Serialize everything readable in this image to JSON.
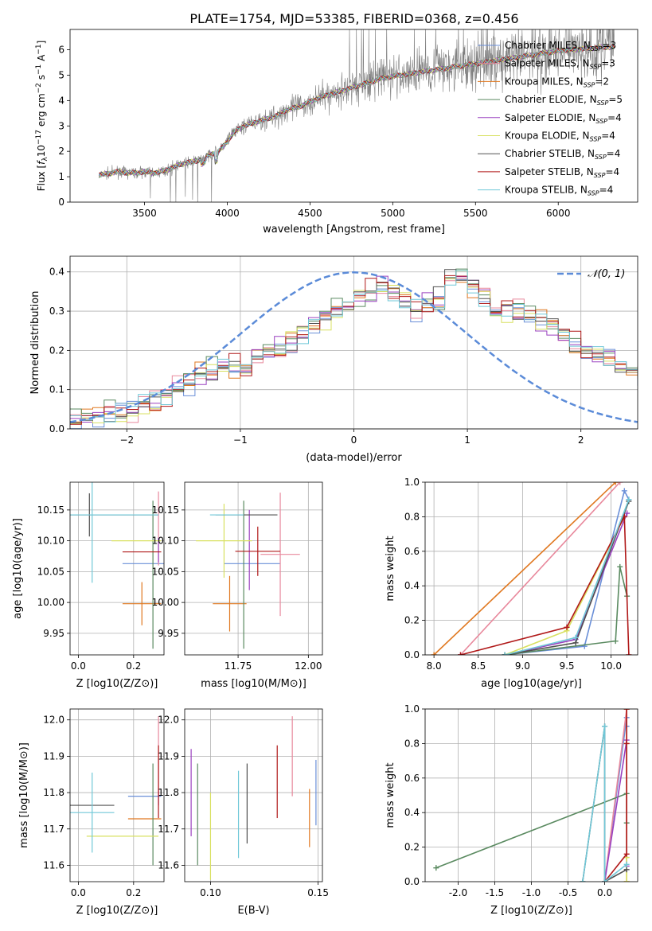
{
  "title": "PLATE=1754, MJD=53385, FIBERID=0368, z=0.456",
  "colors": {
    "Chabrier MILES": "#6a8fd8",
    "Salpeter MILES": "#e8889c",
    "Kroupa MILES": "#e07820",
    "Chabrier ELODIE": "#5a8a60",
    "Salpeter ELODIE": "#9a40c0",
    "Kroupa ELODIE": "#d8e060",
    "Chabrier STELIB": "#505050",
    "Salpeter STELIB": "#b01818",
    "Kroupa STELIB": "#70c8d8",
    "data": "#808080",
    "normal": "#5b8bd8"
  },
  "chart_data": [
    {
      "type": "line",
      "xlabel": "wavelength [Angstrom, rest frame]",
      "ylabel": "Flux [f_λ 10^-17 erg cm^-2 s^-1 A^-1]",
      "xlim": [
        3050,
        6480
      ],
      "ylim": [
        0,
        6.8
      ],
      "xticks": [
        3500,
        4000,
        4500,
        5000,
        5500,
        6000
      ],
      "yticks": [
        0,
        1,
        2,
        3,
        4,
        5,
        6
      ],
      "legend_position": "right",
      "legend": [
        "Chabrier MILES, N_SSP=3",
        "Salpeter MILES, N_SSP=3",
        "Kroupa MILES, N_SSP=2",
        "Chabrier ELODIE, N_SSP=5",
        "Salpeter ELODIE, N_SSP=4",
        "Kroupa ELODIE, N_SSP=4",
        "Chabrier STELIB, N_SSP=4",
        "Salpeter STELIB, N_SSP=4",
        "Kroupa STELIB, N_SSP=4"
      ],
      "model_curve": {
        "x": [
          3220,
          3260,
          3300,
          3350,
          3400,
          3450,
          3500,
          3550,
          3600,
          3650,
          3700,
          3750,
          3800,
          3850,
          3900,
          3950,
          4000,
          4050,
          4100,
          4150,
          4200,
          4250,
          4300,
          4350,
          4400,
          4450,
          4500,
          4550,
          4600,
          4650,
          4700,
          4750,
          4800,
          4850,
          4900,
          4950,
          5000,
          5050,
          5100,
          5150,
          5200,
          5250,
          5300,
          5350,
          5400,
          5450,
          5500,
          5550,
          5600,
          5650,
          5700,
          5750,
          5800,
          5850,
          5900,
          5950,
          6000,
          6050,
          6100,
          6150,
          6200,
          6250,
          6300,
          6340
        ],
        "y": [
          1.05,
          1.1,
          1.15,
          1.2,
          1.15,
          1.15,
          1.2,
          1.15,
          1.2,
          1.3,
          1.45,
          1.55,
          1.6,
          1.7,
          1.9,
          2.0,
          2.4,
          2.8,
          3.0,
          3.1,
          3.2,
          3.3,
          3.4,
          3.6,
          3.7,
          3.8,
          3.95,
          4.1,
          4.2,
          4.3,
          4.4,
          4.5,
          4.6,
          4.7,
          4.8,
          4.9,
          4.95,
          5.0,
          5.05,
          5.1,
          5.15,
          5.2,
          5.25,
          5.3,
          5.35,
          5.4,
          5.45,
          5.5,
          5.55,
          5.6,
          5.65,
          5.7,
          5.75,
          5.8,
          5.85,
          5.9,
          5.95,
          6.0,
          6.0,
          6.05,
          6.05,
          6.1,
          6.1,
          6.1
        ]
      },
      "data_noise": "observed spectrum (grey) scatters around models with noise growing toward red end"
    },
    {
      "type": "bar",
      "xlabel": "(data-model)/error",
      "ylabel": "Normed distribution",
      "xlim": [
        -2.5,
        2.5
      ],
      "ylim": [
        0,
        0.44
      ],
      "xticks": [
        -2,
        -1,
        0,
        1,
        2
      ],
      "yticks": [
        0.0,
        0.1,
        0.2,
        0.3,
        0.4
      ],
      "legend": [
        "𝒩(0, 1)"
      ],
      "legend_position": "top-right",
      "bin_width": 0.1,
      "bins_start": -2.5,
      "base_histogram": [
        0.025,
        0.03,
        0.035,
        0.04,
        0.045,
        0.05,
        0.06,
        0.07,
        0.08,
        0.1,
        0.12,
        0.14,
        0.15,
        0.16,
        0.155,
        0.16,
        0.18,
        0.2,
        0.2,
        0.22,
        0.24,
        0.26,
        0.28,
        0.3,
        0.32,
        0.34,
        0.35,
        0.36,
        0.34,
        0.33,
        0.3,
        0.31,
        0.33,
        0.38,
        0.4,
        0.36,
        0.34,
        0.3,
        0.31,
        0.31,
        0.29,
        0.27,
        0.26,
        0.24,
        0.21,
        0.2,
        0.19,
        0.18,
        0.16,
        0.15,
        0.14,
        0.12,
        0.11,
        0.1,
        0.09,
        0.085,
        0.08,
        0.075,
        0.07,
        0.07,
        0.07,
        0.07,
        0.08,
        0.08,
        0.075,
        0.08,
        0.085,
        0.09,
        0.09,
        0.09
      ]
    },
    {
      "type": "scatter",
      "xlabel": "Z [log10(Z/Z⊙)]",
      "ylabel": "age  [log10(age/yr)]",
      "xlim": [
        -0.03,
        0.31
      ],
      "ylim": [
        9.915,
        10.195
      ],
      "xticks": [
        0.0,
        0.2
      ],
      "yticks": [
        9.95,
        10.0,
        10.05,
        10.1,
        10.15
      ],
      "points": [
        {
          "model": "Chabrier MILES",
          "x": 0.26,
          "y": 10.063,
          "xerr": 0.1,
          "yerr": 0.0
        },
        {
          "model": "Salpeter MILES",
          "x": 0.29,
          "y": 10.12,
          "xerr": 0.0,
          "yerr": 0.06
        },
        {
          "model": "Kroupa MILES",
          "x": 0.23,
          "y": 9.998,
          "xerr": 0.07,
          "yerr": 0.035
        },
        {
          "model": "Chabrier ELODIE",
          "x": 0.27,
          "y": 10.045,
          "xerr": 0.0,
          "yerr": 0.12
        },
        {
          "model": "Salpeter ELODIE",
          "x": 0.29,
          "y": 10.085,
          "xerr": 0.0,
          "yerr": 0.02
        },
        {
          "model": "Kroupa ELODIE",
          "x": 0.21,
          "y": 10.1,
          "xerr": 0.09,
          "yerr": 0.0
        },
        {
          "model": "Chabrier STELIB",
          "x": 0.04,
          "y": 10.142,
          "xerr": 0.25,
          "yerr": 0.035
        },
        {
          "model": "Salpeter STELIB",
          "x": 0.23,
          "y": 10.082,
          "xerr": 0.07,
          "yerr": 0.0
        },
        {
          "model": "Kroupa STELIB",
          "x": 0.05,
          "y": 10.142,
          "xerr": 0.24,
          "yerr": 0.11
        }
      ]
    },
    {
      "type": "scatter",
      "xlabel": "mass [log10(M/M⊙)]",
      "ylabel": "",
      "xlim": [
        11.56,
        12.05
      ],
      "ylim": [
        9.915,
        10.195
      ],
      "xticks": [
        11.75,
        12.0
      ],
      "yticks": [
        9.95,
        10.0,
        10.05,
        10.1,
        10.15
      ],
      "points": [
        {
          "model": "Chabrier MILES",
          "x": 11.8,
          "y": 10.063,
          "xerr": 0.1,
          "yerr": 0.0
        },
        {
          "model": "Salpeter MILES",
          "x": 11.9,
          "y": 10.078,
          "xerr": 0.07,
          "yerr": 0.1
        },
        {
          "model": "Kroupa MILES",
          "x": 11.72,
          "y": 9.998,
          "xerr": 0.06,
          "yerr": 0.045
        },
        {
          "model": "Chabrier ELODIE",
          "x": 11.77,
          "y": 10.045,
          "xerr": 0.0,
          "yerr": 0.12
        },
        {
          "model": "Salpeter ELODIE",
          "x": 11.79,
          "y": 10.085,
          "xerr": 0.0,
          "yerr": 0.065
        },
        {
          "model": "Kroupa ELODIE",
          "x": 11.7,
          "y": 10.1,
          "xerr": 0.1,
          "yerr": 0.06
        },
        {
          "model": "Chabrier STELIB",
          "x": 11.78,
          "y": 10.142,
          "xerr": 0.11,
          "yerr": 0.0
        },
        {
          "model": "Salpeter STELIB",
          "x": 11.82,
          "y": 10.083,
          "xerr": 0.08,
          "yerr": 0.04
        },
        {
          "model": "Kroupa STELIB",
          "x": 11.71,
          "y": 10.142,
          "xerr": 0.06,
          "yerr": 0.0
        }
      ]
    },
    {
      "type": "line",
      "xlabel": "age  [log10(age/yr)]",
      "ylabel": "mass weight",
      "xlim": [
        7.9,
        10.3
      ],
      "ylim": [
        0,
        1.0
      ],
      "xticks": [
        8.0,
        8.5,
        9.0,
        9.5,
        10.0
      ],
      "yticks": [
        0.0,
        0.2,
        0.4,
        0.6,
        0.8,
        1.0
      ],
      "series": [
        {
          "name": "Chabrier MILES",
          "x": [
            8.8,
            9.7,
            10.15,
            10.2
          ],
          "y": [
            0.0,
            0.05,
            0.95,
            0.9
          ]
        },
        {
          "name": "Salpeter MILES",
          "x": [
            8.3,
            10.1
          ],
          "y": [
            0.0,
            1.0
          ]
        },
        {
          "name": "Kroupa MILES",
          "x": [
            8.0,
            10.05
          ],
          "y": [
            0.0,
            1.0
          ]
        },
        {
          "name": "Chabrier ELODIE",
          "x": [
            8.8,
            10.05,
            10.1,
            10.18
          ],
          "y": [
            0.0,
            0.08,
            0.51,
            0.34
          ]
        },
        {
          "name": "Salpeter ELODIE",
          "x": [
            8.8,
            9.6,
            10.18
          ],
          "y": [
            0.0,
            0.09,
            0.82
          ]
        },
        {
          "name": "Kroupa ELODIE",
          "x": [
            8.8,
            9.5,
            10.15
          ],
          "y": [
            0.0,
            0.14,
            0.8
          ]
        },
        {
          "name": "Chabrier STELIB",
          "x": [
            8.8,
            9.6,
            10.2
          ],
          "y": [
            0.0,
            0.07,
            0.89
          ]
        },
        {
          "name": "Salpeter STELIB",
          "x": [
            8.3,
            9.5,
            10.15,
            10.2
          ],
          "y": [
            0.0,
            0.16,
            0.8,
            0.0
          ]
        },
        {
          "name": "Kroupa STELIB",
          "x": [
            8.8,
            9.6,
            10.2
          ],
          "y": [
            0.0,
            0.1,
            0.9
          ]
        }
      ]
    },
    {
      "type": "scatter",
      "xlabel": "Z [log10(Z/Z⊙)]",
      "ylabel": "mass [log10(M/M⊙)]",
      "xlim": [
        -0.03,
        0.31
      ],
      "ylim": [
        11.555,
        12.03
      ],
      "xticks": [
        0.0,
        0.2
      ],
      "yticks": [
        11.6,
        11.7,
        11.8,
        11.9,
        12.0
      ],
      "points": [
        {
          "model": "Chabrier MILES",
          "x": 0.24,
          "y": 11.79,
          "xerr": 0.06,
          "yerr": 0.0
        },
        {
          "model": "Salpeter MILES",
          "x": 0.29,
          "y": 11.9,
          "xerr": 0.0,
          "yerr": 0.11
        },
        {
          "model": "Kroupa MILES",
          "x": 0.24,
          "y": 11.728,
          "xerr": 0.06,
          "yerr": 0.0
        },
        {
          "model": "Chabrier ELODIE",
          "x": 0.27,
          "y": 11.74,
          "xerr": 0.0,
          "yerr": 0.14
        },
        {
          "model": "Salpeter ELODIE",
          "x": 0.29,
          "y": 11.785,
          "xerr": 0.0,
          "yerr": 0.02
        },
        {
          "model": "Kroupa ELODIE",
          "x": 0.16,
          "y": 11.68,
          "xerr": 0.13,
          "yerr": 0.0
        },
        {
          "model": "Chabrier STELIB",
          "x": 0.05,
          "y": 11.765,
          "xerr": 0.08,
          "yerr": 0.0
        },
        {
          "model": "Salpeter STELIB",
          "x": 0.29,
          "y": 11.83,
          "xerr": 0.0,
          "yerr": 0.1
        },
        {
          "model": "Kroupa STELIB",
          "x": 0.05,
          "y": 11.745,
          "xerr": 0.08,
          "yerr": 0.11
        }
      ]
    },
    {
      "type": "scatter",
      "xlabel": "E(B-V)",
      "ylabel": "",
      "xlim": [
        0.088,
        0.152
      ],
      "ylim": [
        11.555,
        12.03
      ],
      "xticks": [
        0.1,
        0.15
      ],
      "yticks": [
        11.6,
        11.7,
        11.8,
        11.9,
        12.0
      ],
      "points": [
        {
          "model": "Chabrier MILES",
          "x": 0.149,
          "y": 11.8,
          "xerr": 0.0,
          "yerr": 0.09
        },
        {
          "model": "Salpeter MILES",
          "x": 0.138,
          "y": 11.9,
          "xerr": 0.0,
          "yerr": 0.11
        },
        {
          "model": "Kroupa MILES",
          "x": 0.146,
          "y": 11.73,
          "xerr": 0.0,
          "yerr": 0.08
        },
        {
          "model": "Chabrier ELODIE",
          "x": 0.094,
          "y": 11.74,
          "xerr": 0.0,
          "yerr": 0.14
        },
        {
          "model": "Salpeter ELODIE",
          "x": 0.091,
          "y": 11.8,
          "xerr": 0.0,
          "yerr": 0.12
        },
        {
          "model": "Kroupa ELODIE",
          "x": 0.1,
          "y": 11.68,
          "xerr": 0.0,
          "yerr": 0.12
        },
        {
          "model": "Chabrier STELIB",
          "x": 0.117,
          "y": 11.77,
          "xerr": 0.0,
          "yerr": 0.11
        },
        {
          "model": "Salpeter STELIB",
          "x": 0.131,
          "y": 11.83,
          "xerr": 0.0,
          "yerr": 0.1
        },
        {
          "model": "Kroupa STELIB",
          "x": 0.113,
          "y": 11.74,
          "xerr": 0.0,
          "yerr": 0.12
        }
      ]
    },
    {
      "type": "line",
      "xlabel": "Z [log10(Z/Z⊙)]",
      "ylabel": "mass weight",
      "xlim": [
        -2.45,
        0.45
      ],
      "ylim": [
        0,
        1.0
      ],
      "xticks": [
        -2.0,
        -1.5,
        -1.0,
        -0.5,
        0.0
      ],
      "yticks": [
        0.0,
        0.2,
        0.4,
        0.6,
        0.8,
        1.0
      ],
      "series": [
        {
          "name": "Chabrier MILES",
          "x": [
            0.0,
            0.3,
            0.3
          ],
          "y": [
            0.0,
            0.95,
            0.9
          ]
        },
        {
          "name": "Salpeter MILES",
          "x": [
            0.0,
            0.3
          ],
          "y": [
            0.0,
            1.0
          ]
        },
        {
          "name": "Kroupa MILES",
          "x": [
            0.3,
            0.3
          ],
          "y": [
            0.0,
            1.0
          ]
        },
        {
          "name": "Chabrier ELODIE",
          "x": [
            -2.3,
            0.3,
            0.3
          ],
          "y": [
            0.08,
            0.51,
            0.34
          ]
        },
        {
          "name": "Salpeter ELODIE",
          "x": [
            0.0,
            0.3,
            0.3
          ],
          "y": [
            0.0,
            0.82,
            0.09
          ]
        },
        {
          "name": "Kroupa ELODIE",
          "x": [
            0.3,
            0.3,
            0.3
          ],
          "y": [
            0.0,
            0.14,
            0.8
          ]
        },
        {
          "name": "Chabrier STELIB",
          "x": [
            -0.3,
            0.0,
            0.0,
            0.3
          ],
          "y": [
            0.0,
            0.9,
            0.0,
            0.07
          ]
        },
        {
          "name": "Salpeter STELIB",
          "x": [
            0.0,
            0.3,
            0.3,
            0.3
          ],
          "y": [
            0.0,
            0.16,
            0.8,
            1.0
          ]
        },
        {
          "name": "Kroupa STELIB",
          "x": [
            -0.3,
            0.0,
            0.0,
            0.3
          ],
          "y": [
            0.0,
            0.9,
            0.0,
            0.1
          ]
        }
      ]
    }
  ]
}
